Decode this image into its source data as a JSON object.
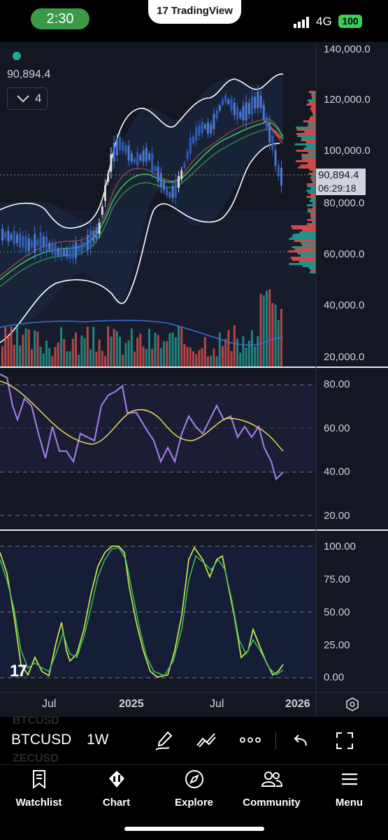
{
  "status_bar": {
    "time": "2:30",
    "app_title": "TradingView",
    "network": "4G",
    "battery": "100"
  },
  "chart": {
    "last_price": "90,894.4",
    "indicator_count": "4",
    "price_badge": {
      "price": "90,894.4",
      "countdown": "06:29:18"
    },
    "price_axis": [
      "140,000.0",
      "120,000.0",
      "100,000.0",
      "80,000.0",
      "60,000.0",
      "40,000.0",
      "20,000.0"
    ],
    "rsi_axis": [
      "80.00",
      "60.00",
      "40.00",
      "20.00"
    ],
    "stoch_axis": [
      "100.00",
      "75.00",
      "50.00",
      "25.00",
      "0.00"
    ],
    "time_axis": [
      "Jul",
      "2025",
      "Jul",
      "2026"
    ],
    "watermark_logo": "17"
  },
  "symbol_bar": {
    "symbol": "BTCUSD",
    "interval": "1W",
    "ghost_above": "BTCUSD",
    "ghost_below": "ZECUSD"
  },
  "tabs": [
    {
      "label": "Watchlist",
      "icon": "bookmark-icon"
    },
    {
      "label": "Chart",
      "icon": "candles-icon"
    },
    {
      "label": "Explore",
      "icon": "compass-icon"
    },
    {
      "label": "Community",
      "icon": "people-icon"
    },
    {
      "label": "Menu",
      "icon": "hamburger-icon"
    }
  ],
  "colors": {
    "background": "#131722",
    "up": "#26a69a",
    "down": "#ef5350",
    "candle_blue": "#4a7bd8",
    "bollinger": "#ffffff",
    "ema_green": "#3fbf5a",
    "rsi_line": "#9b7be0",
    "rsi_ma": "#e6d84a",
    "stoch_k": "#c6e04a",
    "stoch_d": "#3fbf5a",
    "volume_ma": "#3a6fd8"
  }
}
